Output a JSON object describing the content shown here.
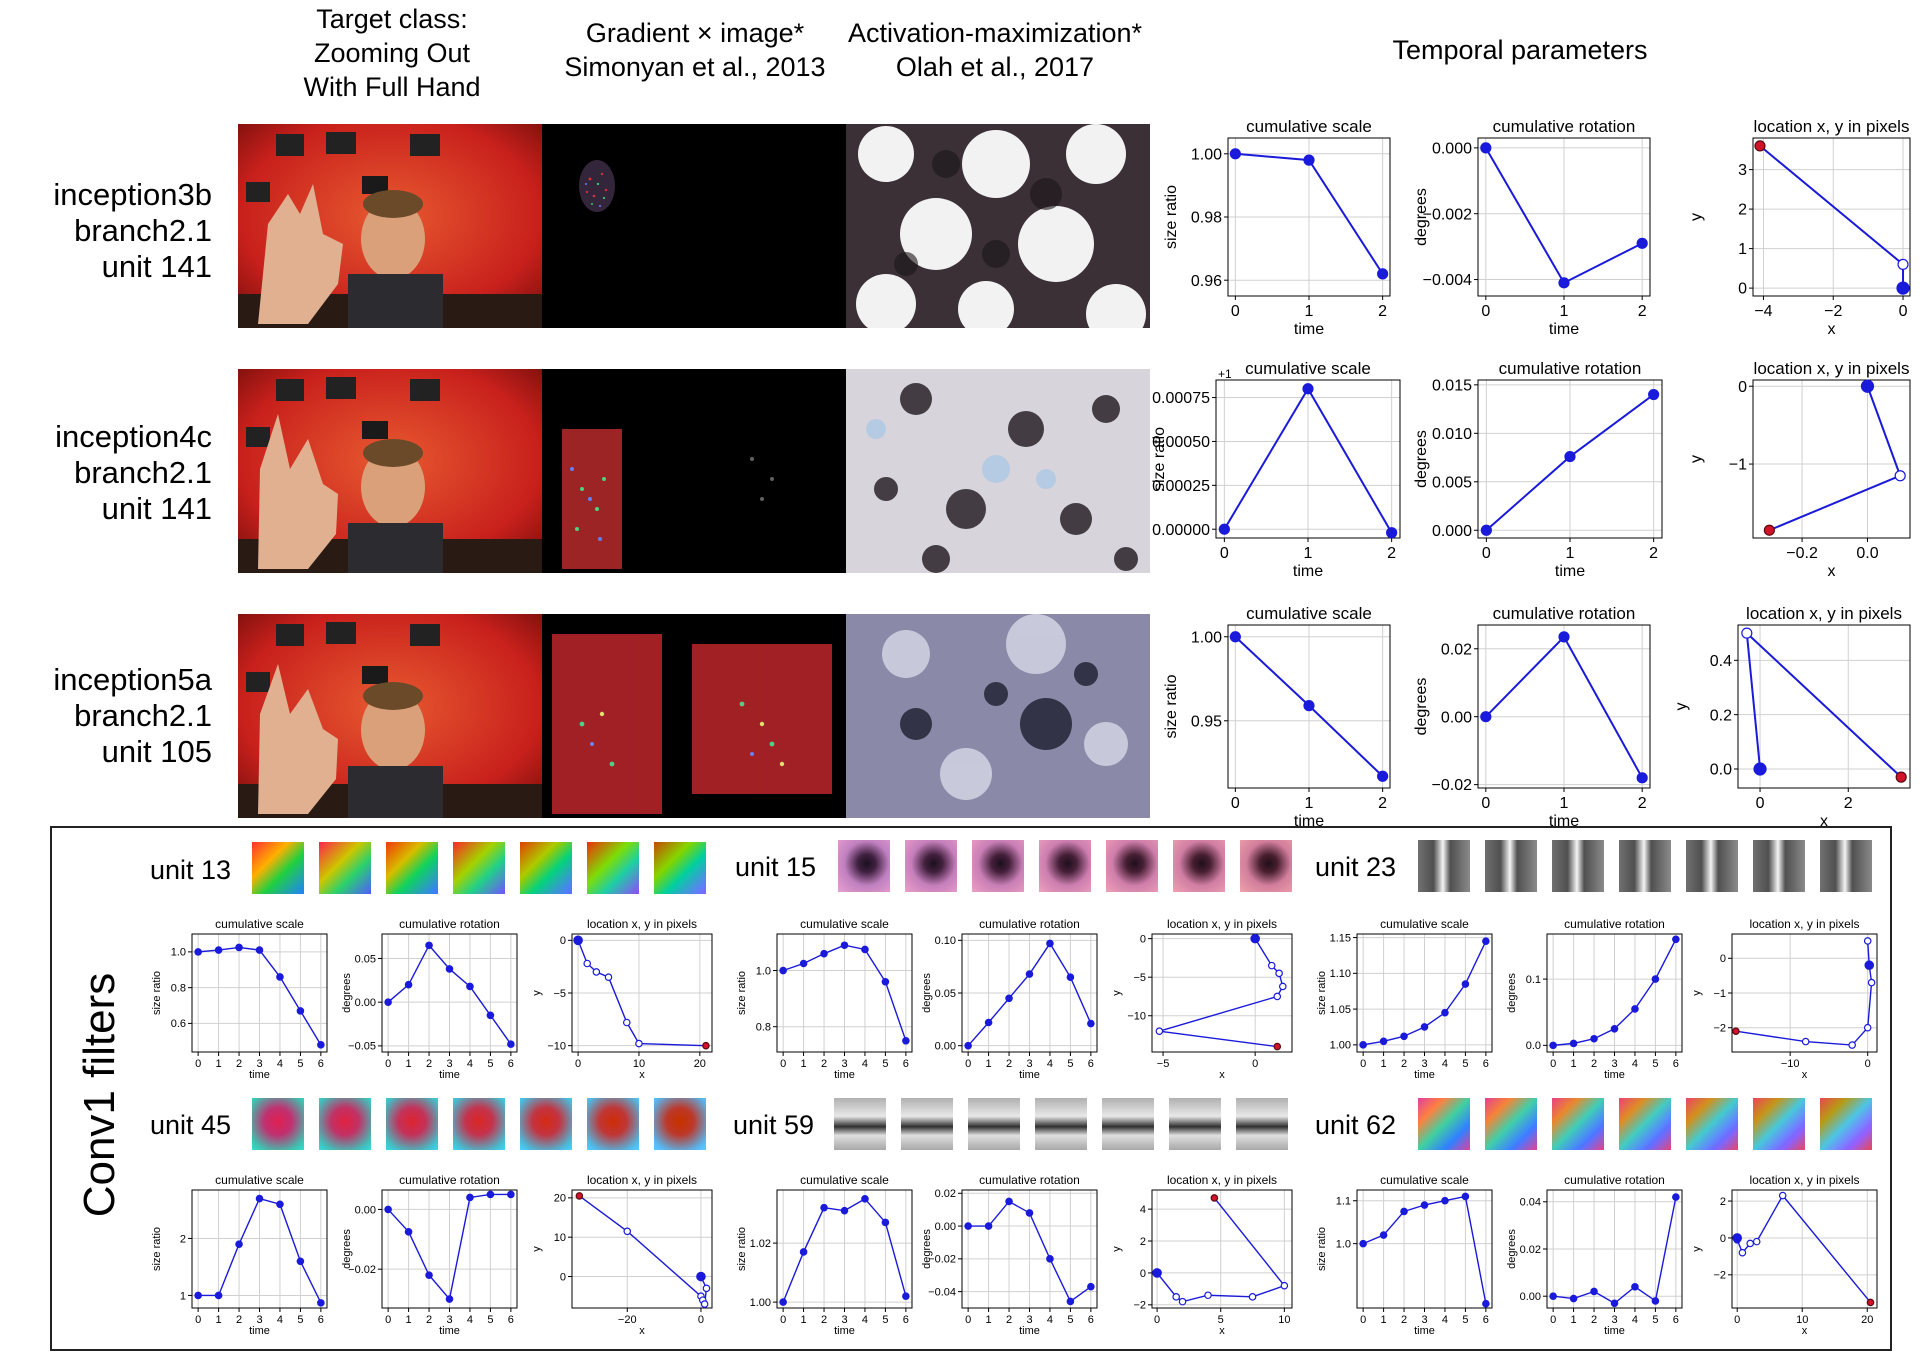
{
  "headers": {
    "target": "Target class:\nZooming Out\nWith Full Hand",
    "gradient": "Gradient × image*\nSimonyan et al., 2013",
    "activation": "Activation-maximization*\nOlah et al., 2017",
    "temporal": "Temporal parameters"
  },
  "rows": [
    {
      "label": "inception3b\nbranch2.1\nunit 141"
    },
    {
      "label": "inception4c\nbranch2.1\nunit 141"
    },
    {
      "label": "inception5a\nbranch2.1\nunit 105"
    }
  ],
  "conv1": {
    "label": "Conv1 filters",
    "units": [
      {
        "label": "unit 13",
        "filter_style": "rainbow"
      },
      {
        "label": "unit 15",
        "filter_style": "pinkblob"
      },
      {
        "label": "unit 23",
        "filter_style": "vbar"
      },
      {
        "label": "unit 45",
        "filter_style": "redcyan"
      },
      {
        "label": "unit 59",
        "filter_style": "hbar"
      },
      {
        "label": "unit 62",
        "filter_style": "diag"
      }
    ]
  },
  "colors": {
    "line": "#1a1adb",
    "start": "#d1132a",
    "open": "#ffffff"
  },
  "chart_data": [
    {
      "id": "r1-scale",
      "type": "line",
      "title": "cumulative scale",
      "xlabel": "time",
      "ylabel": "size ratio",
      "x": [
        0,
        1,
        2
      ],
      "y": [
        1.0,
        0.998,
        0.962
      ],
      "xlim": [
        -0.1,
        2.1
      ],
      "ylim": [
        0.955,
        1.005
      ],
      "yticks": [
        0.96,
        0.98,
        1.0
      ],
      "ytick_labels": [
        "0.96",
        "0.98",
        "1.00"
      ],
      "xticks": [
        0,
        1,
        2
      ]
    },
    {
      "id": "r1-rot",
      "type": "line",
      "title": "cumulative rotation",
      "xlabel": "time",
      "ylabel": "degrees",
      "x": [
        0,
        1,
        2
      ],
      "y": [
        0.0,
        -0.0041,
        -0.0029
      ],
      "xlim": [
        -0.1,
        2.1
      ],
      "ylim": [
        -0.0045,
        0.0003
      ],
      "yticks": [
        -0.004,
        -0.002,
        0.0
      ],
      "ytick_labels": [
        "−0.004",
        "−0.002",
        "0.000"
      ],
      "xticks": [
        0,
        1,
        2
      ]
    },
    {
      "id": "r1-loc",
      "type": "trajectory",
      "title": "location x, y in pixels",
      "xlabel": "x",
      "ylabel": "y",
      "x": [
        -4.1,
        0,
        0
      ],
      "y": [
        3.6,
        0.6,
        0.0
      ],
      "xlim": [
        -4.3,
        0.2
      ],
      "ylim": [
        -0.2,
        3.8
      ],
      "xticks": [
        -4,
        -2,
        0
      ],
      "xtick_labels": [
        "−4",
        "−2",
        "0"
      ],
      "yticks": [
        0,
        1,
        2,
        3
      ],
      "markers": [
        "start",
        "open",
        "end"
      ]
    },
    {
      "id": "r2-scale",
      "type": "line",
      "title": "cumulative scale",
      "xlabel": "time",
      "ylabel": "size ratio",
      "x": [
        0,
        1,
        2
      ],
      "y": [
        0.0,
        0.0008,
        -2e-05
      ],
      "xlim": [
        -0.1,
        2.1
      ],
      "ylim": [
        -5e-05,
        0.00085
      ],
      "yticks": [
        0.0,
        0.00025,
        0.0005,
        0.00075
      ],
      "ytick_labels": [
        "0.00000",
        "0.00025",
        "0.00050",
        "0.00075"
      ],
      "xticks": [
        0,
        1,
        2
      ],
      "offset_text": "+1"
    },
    {
      "id": "r2-rot",
      "type": "line",
      "title": "cumulative rotation",
      "xlabel": "time",
      "ylabel": "degrees",
      "x": [
        0,
        1,
        2
      ],
      "y": [
        0.0,
        0.0076,
        0.014
      ],
      "xlim": [
        -0.1,
        2.1
      ],
      "ylim": [
        -0.0008,
        0.0155
      ],
      "yticks": [
        0.0,
        0.005,
        0.01,
        0.015
      ],
      "ytick_labels": [
        "0.000",
        "0.005",
        "0.010",
        "0.015"
      ],
      "xticks": [
        0,
        1,
        2
      ]
    },
    {
      "id": "r2-loc",
      "type": "trajectory",
      "title": "location x, y in pixels",
      "xlabel": "x",
      "ylabel": "y",
      "x": [
        -0.3,
        0.1,
        0.0
      ],
      "y": [
        -1.85,
        -1.15,
        0.0
      ],
      "xlim": [
        -0.35,
        0.13
      ],
      "ylim": [
        -1.95,
        0.08
      ],
      "xticks": [
        -0.2,
        0.0
      ],
      "xtick_labels": [
        "−0.2",
        "0.0"
      ],
      "yticks": [
        -1,
        0
      ],
      "ytick_labels": [
        "−1",
        "0"
      ],
      "markers": [
        "start",
        "open",
        "end"
      ]
    },
    {
      "id": "r3-scale",
      "type": "line",
      "title": "cumulative scale",
      "xlabel": "time",
      "ylabel": "size ratio",
      "x": [
        0,
        1,
        2
      ],
      "y": [
        1.0,
        0.959,
        0.917
      ],
      "xlim": [
        -0.1,
        2.1
      ],
      "ylim": [
        0.91,
        1.007
      ],
      "yticks": [
        0.95,
        1.0
      ],
      "ytick_labels": [
        "0.95",
        "1.00"
      ],
      "xticks": [
        0,
        1,
        2
      ]
    },
    {
      "id": "r3-rot",
      "type": "line",
      "title": "cumulative rotation",
      "xlabel": "time",
      "ylabel": "degrees",
      "x": [
        0,
        1,
        2
      ],
      "y": [
        0.0,
        0.0235,
        -0.018
      ],
      "xlim": [
        -0.1,
        2.1
      ],
      "ylim": [
        -0.021,
        0.027
      ],
      "yticks": [
        -0.02,
        0.0,
        0.02
      ],
      "ytick_labels": [
        "−0.02",
        "0.00",
        "0.02"
      ],
      "xticks": [
        0,
        1,
        2
      ]
    },
    {
      "id": "r3-loc",
      "type": "trajectory",
      "title": "location x, y in pixels",
      "xlabel": "x",
      "ylabel": "y",
      "x": [
        3.2,
        -0.3,
        0.0
      ],
      "y": [
        -0.03,
        0.5,
        0.0
      ],
      "xlim": [
        -0.5,
        3.4
      ],
      "ylim": [
        -0.07,
        0.53
      ],
      "xticks": [
        0,
        2
      ],
      "yticks": [
        0.0,
        0.2,
        0.4
      ],
      "ytick_labels": [
        "0.0",
        "0.2",
        "0.4"
      ],
      "markers": [
        "start",
        "open",
        "end"
      ]
    },
    {
      "id": "u13-scale",
      "type": "line",
      "title": "cumulative scale",
      "xlabel": "time",
      "ylabel": "size ratio",
      "x": [
        0,
        1,
        2,
        3,
        4,
        5,
        6
      ],
      "y": [
        1.0,
        1.01,
        1.025,
        1.01,
        0.86,
        0.67,
        0.48
      ],
      "xlim": [
        -0.3,
        6.3
      ],
      "ylim": [
        0.44,
        1.1
      ],
      "yticks": [
        0.6,
        0.8,
        1.0
      ],
      "ytick_labels": [
        "0.6",
        "0.8",
        "1.0"
      ],
      "xticks": [
        0,
        1,
        2,
        3,
        4,
        5,
        6
      ]
    },
    {
      "id": "u13-rot",
      "type": "line",
      "title": "cumulative rotation",
      "xlabel": "time",
      "ylabel": "degrees",
      "x": [
        0,
        1,
        2,
        3,
        4,
        5,
        6
      ],
      "y": [
        0.0,
        0.02,
        0.065,
        0.038,
        0.018,
        -0.015,
        -0.048
      ],
      "xlim": [
        -0.3,
        6.3
      ],
      "ylim": [
        -0.057,
        0.078
      ],
      "yticks": [
        -0.05,
        0.0,
        0.05
      ],
      "ytick_labels": [
        "−0.05",
        "0.00",
        "0.05"
      ],
      "xticks": [
        0,
        1,
        2,
        3,
        4,
        5,
        6
      ]
    },
    {
      "id": "u13-loc",
      "type": "trajectory",
      "title": "location x, y in pixels",
      "xlabel": "x",
      "ylabel": "y",
      "x": [
        21,
        10,
        8,
        5,
        3,
        1.5,
        0
      ],
      "y": [
        -10,
        -9.8,
        -7.8,
        -3.5,
        -3,
        -2.2,
        0
      ],
      "xlim": [
        -1,
        22
      ],
      "ylim": [
        -10.6,
        0.6
      ],
      "xticks": [
        0,
        10,
        20
      ],
      "yticks": [
        -10,
        -5,
        0
      ],
      "ytick_labels": [
        "−10",
        "−5",
        "0"
      ],
      "markers": [
        "start",
        "open",
        "open",
        "open",
        "open",
        "open",
        "end"
      ]
    },
    {
      "id": "u15-scale",
      "type": "line",
      "title": "cumulative scale",
      "xlabel": "time",
      "ylabel": "size ratio",
      "x": [
        0,
        1,
        2,
        3,
        4,
        5,
        6
      ],
      "y": [
        1.0,
        1.025,
        1.06,
        1.09,
        1.075,
        0.96,
        0.75
      ],
      "xlim": [
        -0.3,
        6.3
      ],
      "ylim": [
        0.71,
        1.13
      ],
      "yticks": [
        0.8,
        1.0
      ],
      "ytick_labels": [
        "0.8",
        "1.0"
      ],
      "xticks": [
        0,
        1,
        2,
        3,
        4,
        5,
        6
      ]
    },
    {
      "id": "u15-rot",
      "type": "line",
      "title": "cumulative rotation",
      "xlabel": "time",
      "ylabel": "degrees",
      "x": [
        0,
        1,
        2,
        3,
        4,
        5,
        6
      ],
      "y": [
        0.0,
        0.022,
        0.045,
        0.068,
        0.097,
        0.065,
        0.021
      ],
      "xlim": [
        -0.3,
        6.3
      ],
      "ylim": [
        -0.006,
        0.106
      ],
      "yticks": [
        0.0,
        0.05,
        0.1
      ],
      "ytick_labels": [
        "0.00",
        "0.05",
        "0.10"
      ],
      "xticks": [
        0,
        1,
        2,
        3,
        4,
        5,
        6
      ]
    },
    {
      "id": "u15-loc",
      "type": "trajectory",
      "title": "location x, y in pixels",
      "xlabel": "x",
      "ylabel": "y",
      "x": [
        1.2,
        -5.2,
        1.2,
        1.5,
        1.3,
        0.9,
        0
      ],
      "y": [
        -14,
        -12,
        -7.5,
        -6.2,
        -4.5,
        -3.5,
        0
      ],
      "xlim": [
        -5.6,
        2.0
      ],
      "ylim": [
        -14.7,
        0.6
      ],
      "xticks": [
        -5,
        0
      ],
      "xtick_labels": [
        "−5",
        "0"
      ],
      "yticks": [
        -10,
        -5,
        0
      ],
      "ytick_labels": [
        "−10",
        "−5",
        "0"
      ],
      "markers": [
        "start",
        "open",
        "open",
        "open",
        "open",
        "open",
        "end"
      ]
    },
    {
      "id": "u23-scale",
      "type": "line",
      "title": "cumulative scale",
      "xlabel": "time",
      "ylabel": "size ratio",
      "x": [
        0,
        1,
        2,
        3,
        4,
        5,
        6
      ],
      "y": [
        1.0,
        1.005,
        1.012,
        1.025,
        1.045,
        1.085,
        1.145
      ],
      "xlim": [
        -0.3,
        6.3
      ],
      "ylim": [
        0.99,
        1.155
      ],
      "yticks": [
        1.0,
        1.05,
        1.1,
        1.15
      ],
      "ytick_labels": [
        "1.00",
        "1.05",
        "1.10",
        "1.15"
      ],
      "xticks": [
        0,
        1,
        2,
        3,
        4,
        5,
        6
      ]
    },
    {
      "id": "u23-rot",
      "type": "line",
      "title": "cumulative rotation",
      "xlabel": "time",
      "ylabel": "degrees",
      "x": [
        0,
        1,
        2,
        3,
        4,
        5,
        6
      ],
      "y": [
        0.0,
        0.003,
        0.01,
        0.025,
        0.055,
        0.1,
        0.16
      ],
      "xlim": [
        -0.3,
        6.3
      ],
      "ylim": [
        -0.01,
        0.168
      ],
      "yticks": [
        0.0,
        0.1
      ],
      "ytick_labels": [
        "0.0",
        "0.1"
      ],
      "xticks": [
        0,
        1,
        2,
        3,
        4,
        5,
        6
      ]
    },
    {
      "id": "u23-loc",
      "type": "trajectory",
      "title": "location x, y in pixels",
      "xlabel": "x",
      "ylabel": "y",
      "x": [
        -17,
        -8,
        -2,
        0,
        0.5,
        0.2,
        0
      ],
      "y": [
        -2.1,
        -2.4,
        -2.5,
        -2.0,
        -0.7,
        -0.2,
        0.5
      ],
      "xlim": [
        -17.5,
        1.2
      ],
      "ylim": [
        -2.7,
        0.7
      ],
      "xticks": [
        -10,
        0
      ],
      "xtick_labels": [
        "−10",
        "0"
      ],
      "yticks": [
        -2,
        -1,
        0
      ],
      "ytick_labels": [
        "−2",
        "−1",
        "0"
      ],
      "markers": [
        "start",
        "open",
        "open",
        "open",
        "open",
        "end",
        "open"
      ]
    },
    {
      "id": "u45-scale",
      "type": "line",
      "title": "cumulative scale",
      "xlabel": "time",
      "ylabel": "size ratio",
      "x": [
        0,
        1,
        2,
        3,
        4,
        5,
        6
      ],
      "y": [
        1.0,
        1.0,
        1.9,
        2.7,
        2.6,
        1.6,
        0.87
      ],
      "xlim": [
        -0.3,
        6.3
      ],
      "ylim": [
        0.78,
        2.85
      ],
      "yticks": [
        1,
        2
      ],
      "xticks": [
        0,
        1,
        2,
        3,
        4,
        5,
        6
      ]
    },
    {
      "id": "u45-rot",
      "type": "line",
      "title": "cumulative rotation",
      "xlabel": "time",
      "ylabel": "degrees",
      "x": [
        0,
        1,
        2,
        3,
        4,
        5,
        6
      ],
      "y": [
        0.0,
        -0.0075,
        -0.022,
        -0.03,
        0.004,
        0.005,
        0.005
      ],
      "xlim": [
        -0.3,
        6.3
      ],
      "ylim": [
        -0.033,
        0.0065
      ],
      "yticks": [
        -0.02,
        0.0
      ],
      "ytick_labels": [
        "−0.02",
        "0.00"
      ],
      "xticks": [
        0,
        1,
        2,
        3,
        4,
        5,
        6
      ]
    },
    {
      "id": "u45-loc",
      "type": "trajectory",
      "title": "location x, y in pixels",
      "xlabel": "x",
      "ylabel": "y",
      "x": [
        -33,
        -20,
        0,
        0.5,
        1,
        1.5,
        0
      ],
      "y": [
        20.5,
        11.5,
        -5,
        -6,
        -7,
        -3,
        0
      ],
      "xlim": [
        -35,
        3
      ],
      "ylim": [
        -8,
        22
      ],
      "xticks": [
        -20,
        0
      ],
      "xtick_labels": [
        "−20",
        "0"
      ],
      "yticks": [
        0,
        10,
        20
      ],
      "markers": [
        "start",
        "open",
        "open",
        "open",
        "open",
        "open",
        "end"
      ]
    },
    {
      "id": "u59-scale",
      "type": "line",
      "title": "cumulative scale",
      "xlabel": "time",
      "ylabel": "size ratio",
      "x": [
        0,
        1,
        2,
        3,
        4,
        5,
        6
      ],
      "y": [
        1.0,
        1.017,
        1.032,
        1.031,
        1.035,
        1.027,
        1.002
      ],
      "xlim": [
        -0.3,
        6.3
      ],
      "ylim": [
        0.998,
        1.038
      ],
      "yticks": [
        1.0,
        1.02
      ],
      "ytick_labels": [
        "1.00",
        "1.02"
      ],
      "xticks": [
        0,
        1,
        2,
        3,
        4,
        5,
        6
      ]
    },
    {
      "id": "u59-rot",
      "type": "line",
      "title": "cumulative rotation",
      "xlabel": "time",
      "ylabel": "degrees",
      "x": [
        0,
        1,
        2,
        3,
        4,
        5,
        6
      ],
      "y": [
        0.0,
        0.0,
        0.015,
        0.008,
        -0.02,
        -0.046,
        -0.037
      ],
      "xlim": [
        -0.3,
        6.3
      ],
      "ylim": [
        -0.05,
        0.022
      ],
      "yticks": [
        -0.04,
        -0.02,
        0.0,
        0.02
      ],
      "ytick_labels": [
        "−0.04",
        "−0.02",
        "0.00",
        "0.02"
      ],
      "xticks": [
        0,
        1,
        2,
        3,
        4,
        5,
        6
      ]
    },
    {
      "id": "u59-loc",
      "type": "trajectory",
      "title": "location x, y in pixels",
      "xlabel": "x",
      "ylabel": "y",
      "x": [
        4.5,
        10,
        7.5,
        4,
        2,
        1.5,
        0
      ],
      "y": [
        4.7,
        -0.8,
        -1.5,
        -1.4,
        -1.8,
        -1.5,
        0
      ],
      "xlim": [
        -0.4,
        10.6
      ],
      "ylim": [
        -2.2,
        5.2
      ],
      "xticks": [
        0,
        5,
        10
      ],
      "yticks": [
        -2,
        0,
        2,
        4
      ],
      "ytick_labels": [
        "−2",
        "0",
        "2",
        "4"
      ],
      "markers": [
        "start",
        "open",
        "open",
        "open",
        "open",
        "open",
        "end"
      ]
    },
    {
      "id": "u62-scale",
      "type": "line",
      "title": "cumulative scale",
      "xlabel": "time",
      "ylabel": "size ratio",
      "x": [
        0,
        1,
        2,
        3,
        4,
        5,
        6
      ],
      "y": [
        1.0,
        1.02,
        1.075,
        1.09,
        1.1,
        1.11,
        0.86
      ],
      "xlim": [
        -0.3,
        6.3
      ],
      "ylim": [
        0.85,
        1.125
      ],
      "yticks": [
        1.0,
        1.1
      ],
      "ytick_labels": [
        "1.0",
        "1.1"
      ],
      "xticks": [
        0,
        1,
        2,
        3,
        4,
        5,
        6
      ]
    },
    {
      "id": "u62-rot",
      "type": "line",
      "title": "cumulative rotation",
      "xlabel": "time",
      "ylabel": "degrees",
      "x": [
        0,
        1,
        2,
        3,
        4,
        5,
        6
      ],
      "y": [
        0.0,
        -0.001,
        0.002,
        -0.003,
        0.004,
        -0.002,
        0.042
      ],
      "xlim": [
        -0.3,
        6.3
      ],
      "ylim": [
        -0.005,
        0.045
      ],
      "yticks": [
        0.0,
        0.02,
        0.04
      ],
      "ytick_labels": [
        "0.00",
        "0.02",
        "0.04"
      ],
      "xticks": [
        0,
        1,
        2,
        3,
        4,
        5,
        6
      ]
    },
    {
      "id": "u62-loc",
      "type": "trajectory",
      "title": "location x, y in pixels",
      "xlabel": "x",
      "ylabel": "y",
      "x": [
        20.5,
        7,
        3,
        2,
        0.8,
        0,
        0
      ],
      "y": [
        -3.5,
        2.3,
        -0.2,
        -0.3,
        -0.8,
        -0.1,
        0
      ],
      "xlim": [
        -0.8,
        21.5
      ],
      "ylim": [
        -3.8,
        2.6
      ],
      "xticks": [
        0,
        10,
        20
      ],
      "yticks": [
        -2,
        0,
        2
      ],
      "ytick_labels": [
        "−2",
        "0",
        "2"
      ],
      "markers": [
        "start",
        "open",
        "open",
        "open",
        "open",
        "open",
        "end"
      ]
    }
  ]
}
